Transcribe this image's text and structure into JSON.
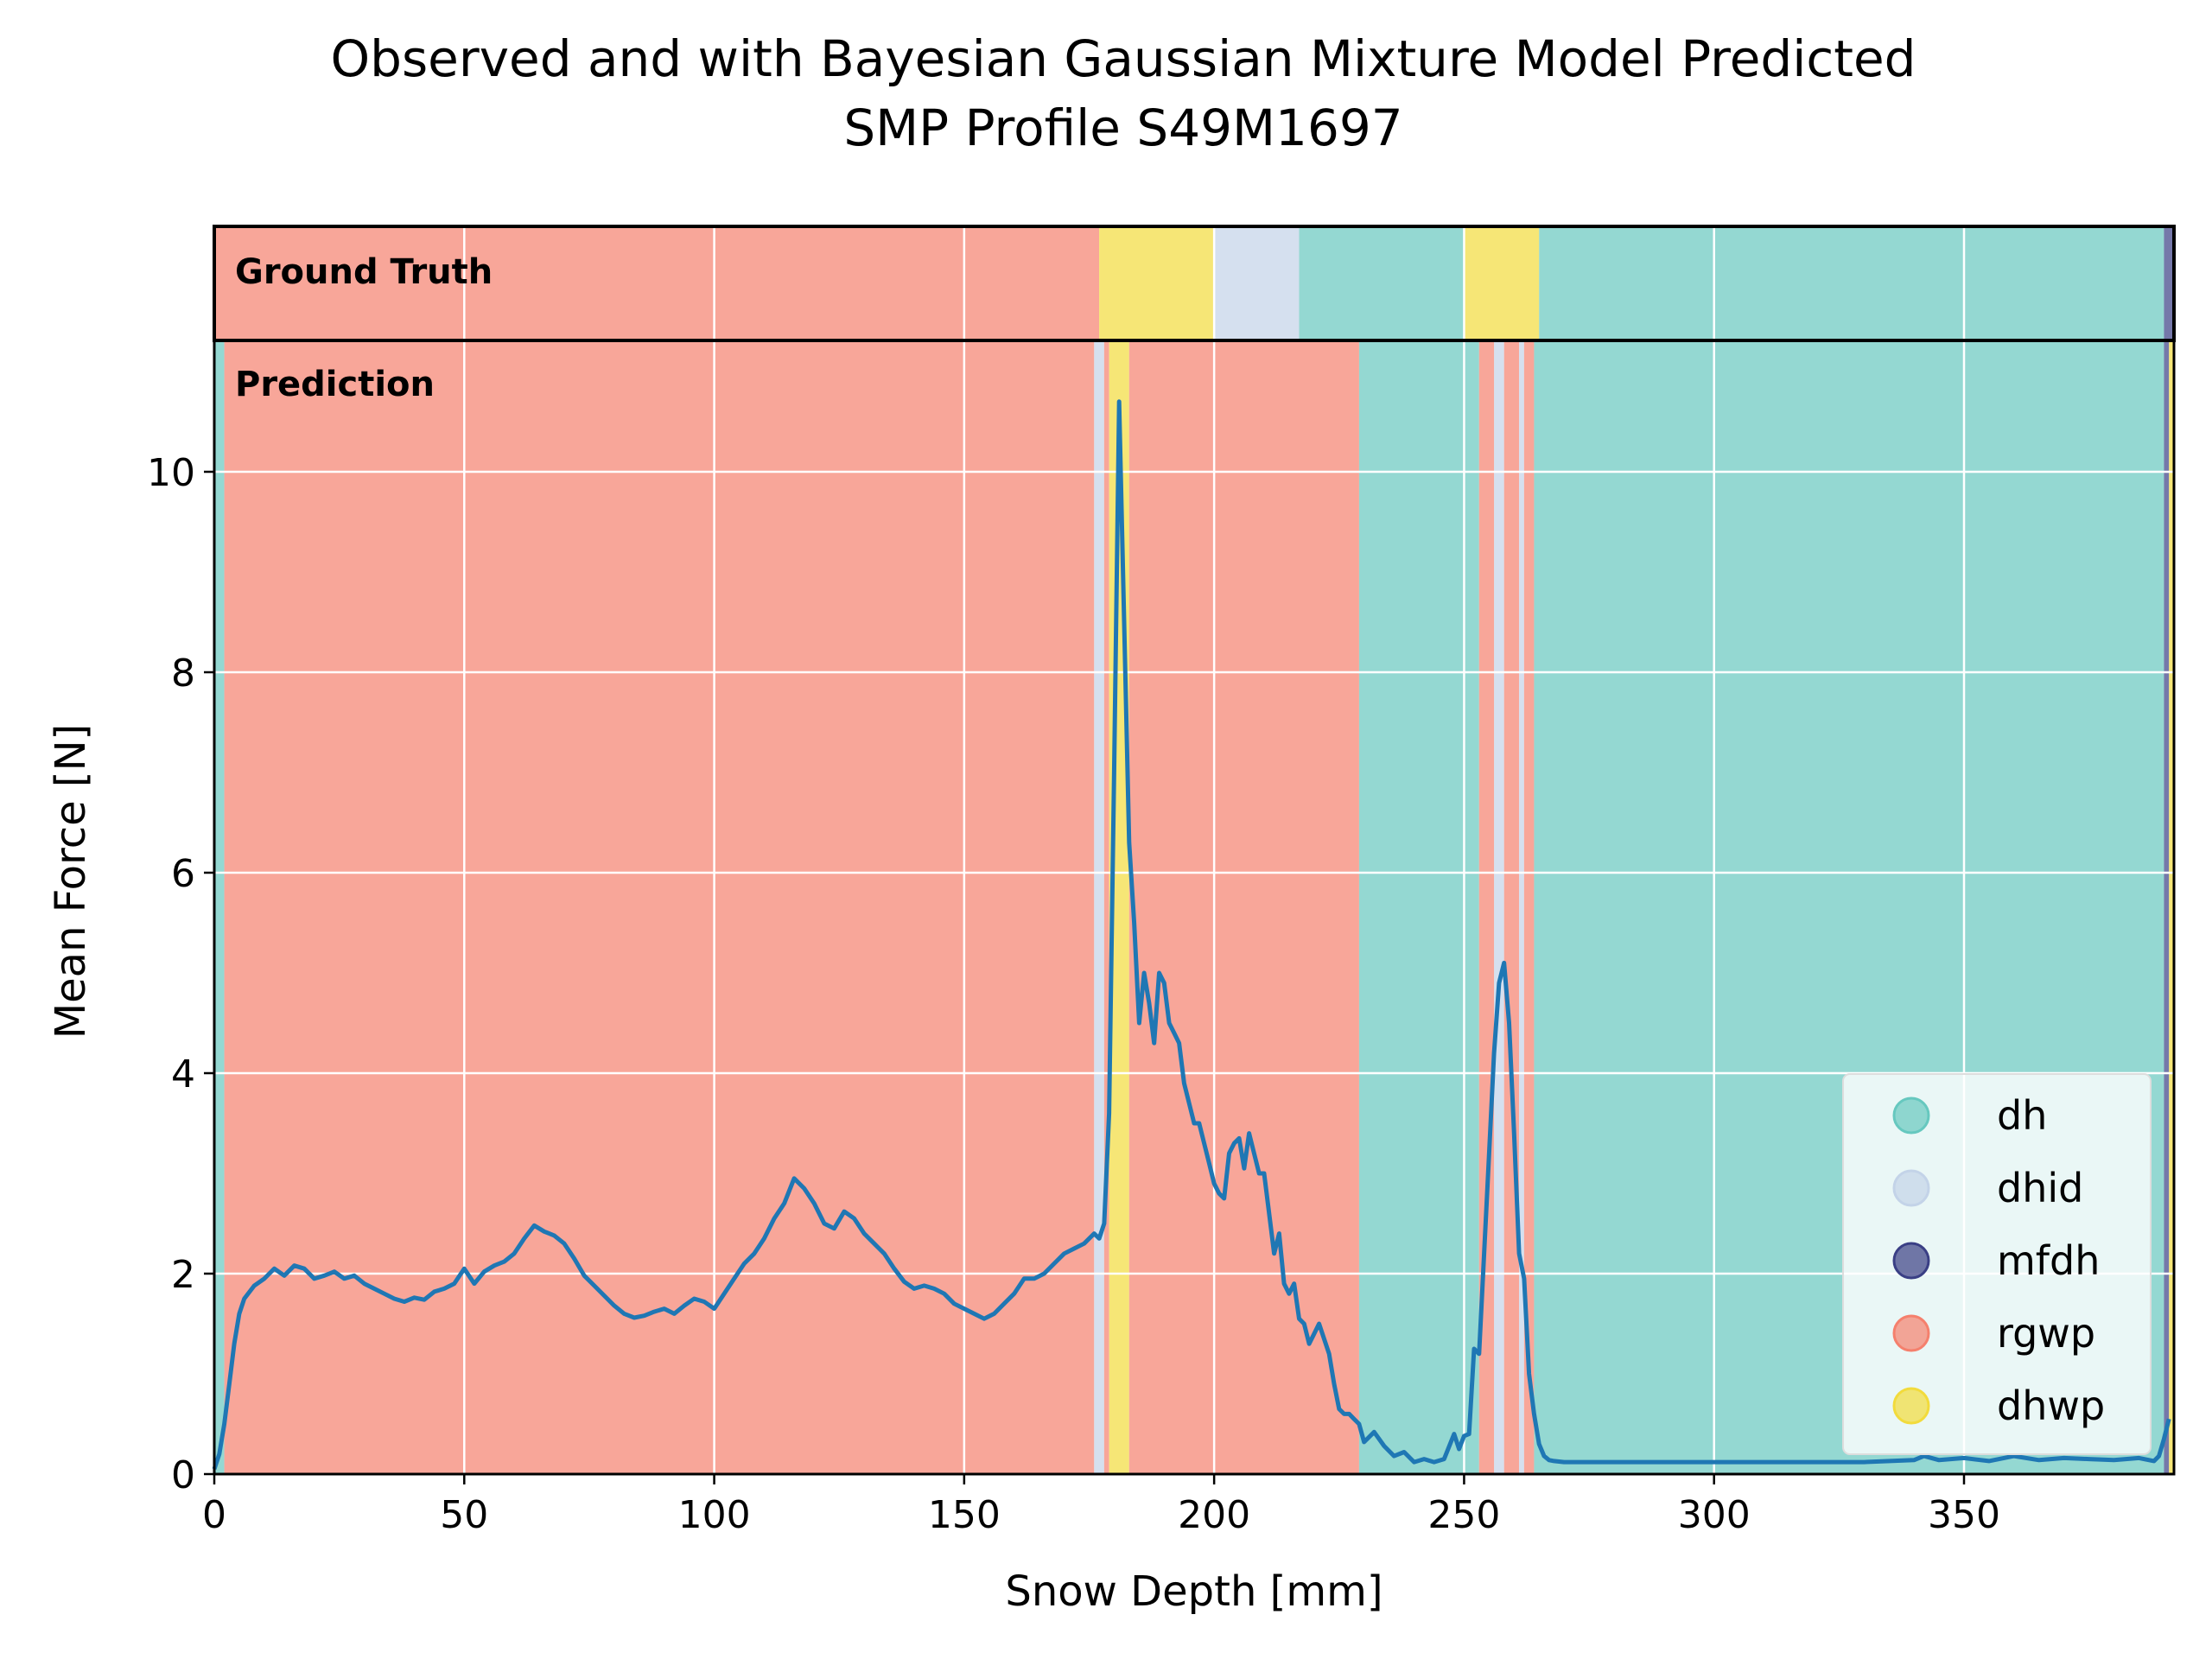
{
  "chart_data": {
    "type": "line",
    "title": "Observed and with Bayesian Gaussian Mixture Model Predicted",
    "subtitle": "SMP Profile S49M1697",
    "xlabel": "Snow Depth [mm]",
    "ylabel": "Mean Force [N]",
    "xlim": [
      0,
      392
    ],
    "ylim": [
      0,
      11.2
    ],
    "xticks": [
      0,
      50,
      100,
      150,
      200,
      250,
      300,
      350
    ],
    "yticks": [
      0,
      2,
      4,
      6,
      8,
      10
    ],
    "grid": true,
    "legend_position": "bottom-right",
    "band_labels": {
      "ground_truth": "Ground Truth",
      "prediction": "Prediction"
    },
    "classes": [
      {
        "name": "dh",
        "color": "#66c8bf"
      },
      {
        "name": "dhid",
        "color": "#c3d3e8"
      },
      {
        "name": "mfdh",
        "color": "#3a3f85"
      },
      {
        "name": "rgwp",
        "color": "#f5806d"
      },
      {
        "name": "dhwp",
        "color": "#f2db3c"
      }
    ],
    "ground_truth_segments": [
      {
        "start": 0,
        "end": 177,
        "class": "rgwp"
      },
      {
        "start": 177,
        "end": 200,
        "class": "dhwp"
      },
      {
        "start": 200,
        "end": 217,
        "class": "dhid"
      },
      {
        "start": 217,
        "end": 250,
        "class": "dh"
      },
      {
        "start": 250,
        "end": 265,
        "class": "dhwp"
      },
      {
        "start": 265,
        "end": 390,
        "class": "dh"
      },
      {
        "start": 390,
        "end": 392,
        "class": "mfdh"
      }
    ],
    "prediction_segments": [
      {
        "start": 0,
        "end": 2,
        "class": "dh"
      },
      {
        "start": 2,
        "end": 176,
        "class": "rgwp"
      },
      {
        "start": 176,
        "end": 178,
        "class": "dhid"
      },
      {
        "start": 178,
        "end": 179,
        "class": "rgwp"
      },
      {
        "start": 179,
        "end": 183,
        "class": "dhwp"
      },
      {
        "start": 183,
        "end": 229,
        "class": "rgwp"
      },
      {
        "start": 229,
        "end": 253,
        "class": "dh"
      },
      {
        "start": 253,
        "end": 256,
        "class": "rgwp"
      },
      {
        "start": 256,
        "end": 258,
        "class": "dhid"
      },
      {
        "start": 258,
        "end": 261,
        "class": "rgwp"
      },
      {
        "start": 261,
        "end": 262,
        "class": "dhid"
      },
      {
        "start": 262,
        "end": 264,
        "class": "rgwp"
      },
      {
        "start": 264,
        "end": 390,
        "class": "dh"
      },
      {
        "start": 390,
        "end": 391,
        "class": "mfdh"
      },
      {
        "start": 391,
        "end": 392,
        "class": "dhwp"
      }
    ],
    "series": [
      {
        "color": "#1f77b4",
        "x": [
          0,
          1,
          2,
          3,
          4,
          5,
          6,
          8,
          10,
          12,
          14,
          16,
          18,
          20,
          22,
          24,
          26,
          28,
          30,
          32,
          34,
          36,
          38,
          40,
          42,
          44,
          46,
          48,
          50,
          52,
          54,
          56,
          58,
          60,
          62,
          64,
          66,
          68,
          70,
          72,
          74,
          76,
          78,
          80,
          82,
          84,
          86,
          88,
          90,
          92,
          94,
          96,
          98,
          100,
          102,
          104,
          106,
          108,
          110,
          112,
          114,
          116,
          118,
          120,
          122,
          124,
          126,
          128,
          130,
          132,
          134,
          136,
          138,
          140,
          142,
          144,
          146,
          148,
          150,
          152,
          154,
          156,
          158,
          160,
          162,
          164,
          166,
          168,
          170,
          172,
          174,
          176,
          177,
          178,
          179,
          180,
          181,
          182,
          183,
          184,
          185,
          186,
          187,
          188,
          189,
          190,
          191,
          192,
          193,
          194,
          195,
          196,
          197,
          198,
          199,
          200,
          201,
          202,
          203,
          204,
          205,
          206,
          207,
          208,
          209,
          210,
          211,
          212,
          213,
          214,
          215,
          216,
          217,
          218,
          219,
          220,
          221,
          222,
          223,
          224,
          225,
          226,
          227,
          228,
          229,
          230,
          232,
          234,
          236,
          238,
          240,
          242,
          244,
          246,
          248,
          249,
          250,
          251,
          252,
          253,
          254,
          255,
          256,
          257,
          258,
          259,
          260,
          261,
          262,
          263,
          264,
          265,
          266,
          267,
          268,
          270,
          272,
          275,
          280,
          290,
          300,
          310,
          320,
          330,
          340,
          342,
          345,
          350,
          355,
          360,
          365,
          370,
          375,
          380,
          385,
          388,
          389,
          390,
          391
        ],
        "y": [
          0.05,
          0.2,
          0.5,
          0.9,
          1.3,
          1.6,
          1.75,
          1.88,
          1.95,
          2.05,
          1.98,
          2.08,
          2.05,
          1.95,
          1.98,
          2.02,
          1.95,
          1.98,
          1.9,
          1.85,
          1.8,
          1.75,
          1.72,
          1.76,
          1.74,
          1.82,
          1.85,
          1.9,
          2.05,
          1.9,
          2.02,
          2.08,
          2.12,
          2.2,
          2.35,
          2.48,
          2.42,
          2.38,
          2.3,
          2.15,
          1.98,
          1.88,
          1.78,
          1.68,
          1.6,
          1.56,
          1.58,
          1.62,
          1.65,
          1.6,
          1.68,
          1.75,
          1.72,
          1.65,
          1.8,
          1.95,
          2.1,
          2.2,
          2.35,
          2.55,
          2.7,
          2.95,
          2.85,
          2.7,
          2.5,
          2.45,
          2.62,
          2.55,
          2.4,
          2.3,
          2.2,
          2.05,
          1.92,
          1.85,
          1.88,
          1.85,
          1.8,
          1.7,
          1.65,
          1.6,
          1.55,
          1.6,
          1.7,
          1.8,
          1.95,
          1.95,
          2.0,
          2.1,
          2.2,
          2.25,
          2.3,
          2.4,
          2.35,
          2.5,
          3.6,
          7.0,
          10.7,
          8.5,
          6.3,
          5.5,
          4.5,
          5.0,
          4.7,
          4.3,
          5.0,
          4.9,
          4.5,
          4.4,
          4.3,
          3.9,
          3.7,
          3.5,
          3.5,
          3.3,
          3.1,
          2.9,
          2.8,
          2.75,
          3.2,
          3.3,
          3.35,
          3.05,
          3.4,
          3.2,
          3.0,
          3.0,
          2.6,
          2.2,
          2.4,
          1.9,
          1.8,
          1.9,
          1.55,
          1.5,
          1.3,
          1.4,
          1.5,
          1.35,
          1.2,
          0.9,
          0.65,
          0.6,
          0.6,
          0.55,
          0.5,
          0.32,
          0.42,
          0.28,
          0.18,
          0.22,
          0.12,
          0.15,
          0.12,
          0.15,
          0.4,
          0.25,
          0.38,
          0.4,
          1.25,
          1.2,
          2.2,
          3.2,
          4.2,
          4.9,
          5.1,
          4.5,
          3.4,
          2.2,
          1.95,
          1.0,
          0.6,
          0.3,
          0.18,
          0.14,
          0.13,
          0.12,
          0.12,
          0.12,
          0.12,
          0.12,
          0.12,
          0.12,
          0.12,
          0.12,
          0.14,
          0.18,
          0.14,
          0.16,
          0.13,
          0.18,
          0.14,
          0.16,
          0.15,
          0.14,
          0.16,
          0.13,
          0.18,
          0.35,
          0.55
        ]
      }
    ]
  }
}
